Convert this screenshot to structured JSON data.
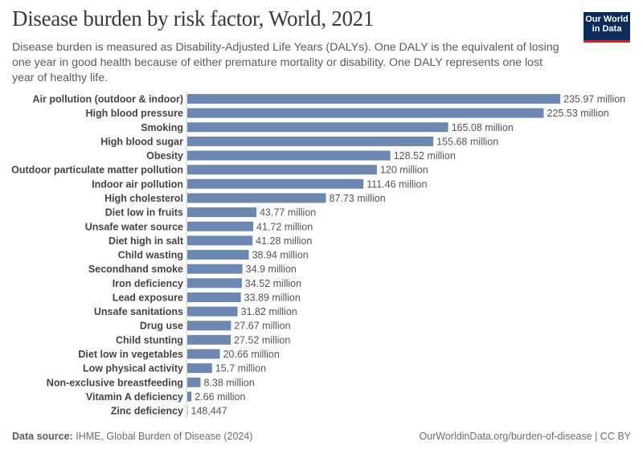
{
  "header": {
    "title": "Disease burden by risk factor, World, 2021",
    "subtitle": "Disease burden is measured as Disability-Adjusted Life Years (DALYs). One DALY is the equivalent of losing one year in good health because of either premature mortality or disability. One DALY represents one lost year of healthy life.",
    "logo_line1": "Our World",
    "logo_line2": "in Data"
  },
  "footer": {
    "source_label": "Data source:",
    "source_text": "IHME, Global Burden of Disease (2024)",
    "url": "OurWorldinData.org/burden-of-disease | CC BY"
  },
  "colors": {
    "bar": "#6d87b1",
    "logo_bg": "#0c2c5c",
    "logo_accent": "#ce261e"
  },
  "chart_data": {
    "type": "bar",
    "orientation": "horizontal",
    "categories": [
      "Air pollution (outdoor & indoor)",
      "High blood pressure",
      "Smoking",
      "High blood sugar",
      "Obesity",
      "Outdoor particulate matter pollution",
      "Indoor air pollution",
      "High cholesterol",
      "Diet low in fruits",
      "Unsafe water source",
      "Diet high in salt",
      "Child wasting",
      "Secondhand smoke",
      "Iron deficiency",
      "Lead exposure",
      "Unsafe sanitations",
      "Drug use",
      "Child stunting",
      "Diet low in vegetables",
      "Low physical activity",
      "Non-exclusive breastfeeding",
      "Vitamin A deficiency",
      "Zinc deficiency"
    ],
    "values": [
      235970000,
      225530000,
      165080000,
      155680000,
      128520000,
      120000000,
      111460000,
      87730000,
      43770000,
      41720000,
      41280000,
      38940000,
      34900000,
      34520000,
      33890000,
      31820000,
      27670000,
      27520000,
      20660000,
      15700000,
      8380000,
      2660000,
      148447
    ],
    "data_labels": [
      "235.97 million",
      "225.53 million",
      "165.08 million",
      "155.68 million",
      "128.52 million",
      "120 million",
      "111.46 million",
      "87.73 million",
      "43.77 million",
      "41.72 million",
      "41.28 million",
      "38.94 million",
      "34.9 million",
      "34.52 million",
      "33.89 million",
      "31.82 million",
      "27.67 million",
      "27.52 million",
      "20.66 million",
      "15.7 million",
      "8.38 million",
      "2.66 million",
      "148,447"
    ],
    "xlim": [
      0,
      235970000
    ],
    "grid": false,
    "legend": "none"
  }
}
